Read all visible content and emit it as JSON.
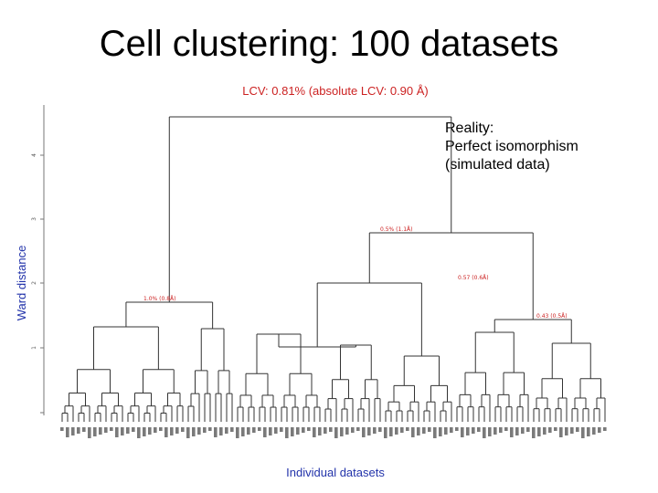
{
  "slide": {
    "title": "Cell clustering: 100 datasets",
    "note": [
      "Reality:",
      "Perfect isomorphism",
      "(simulated data)"
    ]
  },
  "chart_data": {
    "type": "dendrogram",
    "title": "LCV: 0.81% (absolute LCV: 0.90 Å)",
    "xlabel": "Individual datasets",
    "ylabel": "Ward distance",
    "y_ticks": [
      "1",
      "2",
      "3",
      "4"
    ],
    "node_labels": [
      "1.0% (0.8Å)",
      "0.5% (1.1Å)",
      "0.57 (0.6Å)",
      "0.43 (0.5Å)"
    ],
    "leaf_count": 100,
    "colors": {
      "title": "#cc2222",
      "ylabel": "#2233aa",
      "xlabel": "#2233aa",
      "node_label": "#cc2222",
      "tree": "#333333"
    }
  }
}
